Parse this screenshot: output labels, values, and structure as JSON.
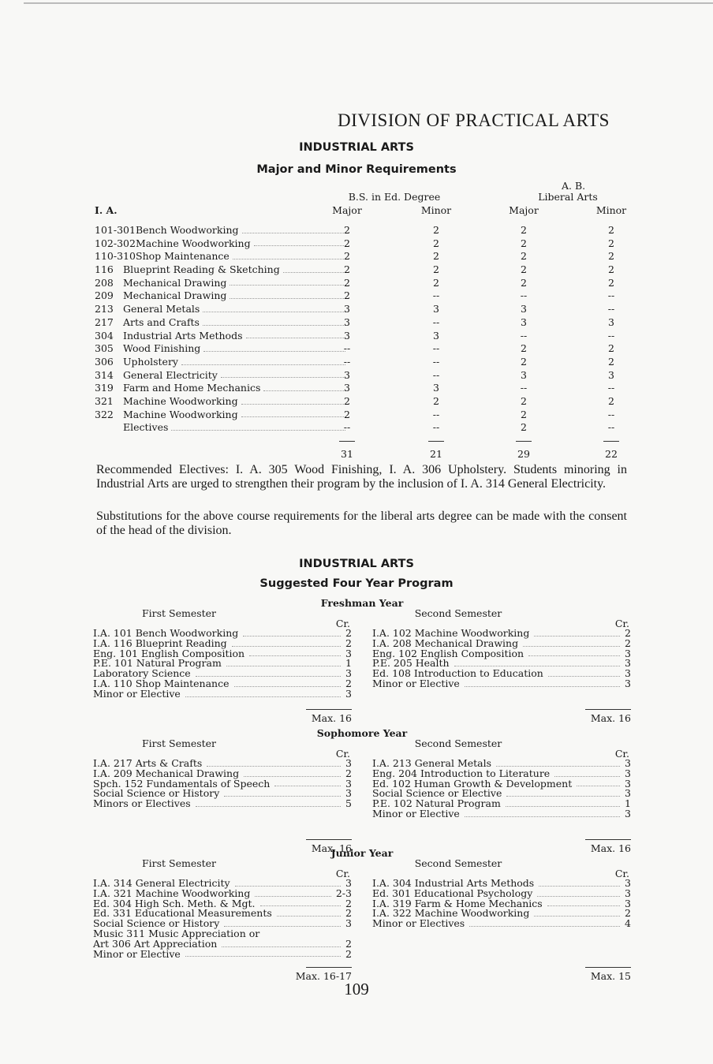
{
  "division_title": "DIVISION OF PRACTICAL ARTS",
  "section1": {
    "heading": "INDUSTRIAL ARTS",
    "subheading": "Major and Minor Requirements"
  },
  "table": {
    "group_bs": "B.S. in Ed. Degree",
    "group_ab_1": "A. B.",
    "group_ab_2": "Liberal Arts",
    "row_header": "I. A.",
    "col_headers": [
      "Major",
      "Minor",
      "Major",
      "Minor"
    ],
    "rows": [
      {
        "code": "101-301",
        "name": "Bench Woodworking",
        "v": [
          "2",
          "2",
          "2",
          "2"
        ]
      },
      {
        "code": "102-302",
        "name": "Machine Woodworking",
        "v": [
          "2",
          "2",
          "2",
          "2"
        ]
      },
      {
        "code": "110-310",
        "name": "Shop Maintenance",
        "v": [
          "2",
          "2",
          "2",
          "2"
        ]
      },
      {
        "code": "116",
        "name": "Blueprint Reading & Sketching",
        "v": [
          "2",
          "2",
          "2",
          "2"
        ]
      },
      {
        "code": "208",
        "name": "Mechanical Drawing",
        "v": [
          "2",
          "2",
          "2",
          "2"
        ]
      },
      {
        "code": "209",
        "name": "Mechanical Drawing",
        "v": [
          "2",
          "--",
          "--",
          "--"
        ]
      },
      {
        "code": "213",
        "name": "General Metals",
        "v": [
          "3",
          "3",
          "3",
          "--"
        ]
      },
      {
        "code": "217",
        "name": "Arts and Crafts",
        "v": [
          "3",
          "--",
          "3",
          "3"
        ]
      },
      {
        "code": "304",
        "name": "Industrial Arts Methods",
        "v": [
          "3",
          "3",
          "--",
          "--"
        ]
      },
      {
        "code": "305",
        "name": "Wood Finishing",
        "v": [
          "--",
          "--",
          "2",
          "2"
        ]
      },
      {
        "code": "306",
        "name": "Upholstery",
        "v": [
          "--",
          "--",
          "2",
          "2"
        ]
      },
      {
        "code": "314",
        "name": "General Electricity",
        "v": [
          "3",
          "--",
          "3",
          "3"
        ]
      },
      {
        "code": "319",
        "name": "Farm and Home Mechanics",
        "v": [
          "3",
          "3",
          "--",
          "--"
        ]
      },
      {
        "code": "321",
        "name": "Machine Woodworking",
        "v": [
          "2",
          "2",
          "2",
          "2"
        ]
      },
      {
        "code": "322",
        "name": "Machine Woodworking",
        "v": [
          "2",
          "--",
          "2",
          "--"
        ]
      },
      {
        "code": "",
        "name": "Electives",
        "v": [
          "--",
          "--",
          "2",
          "--"
        ]
      }
    ],
    "totals": [
      "31",
      "21",
      "29",
      "22"
    ]
  },
  "paragraphs": [
    "Recommended Electives: I. A. 305 Wood Finishing, I. A. 306 Upholstery. Students minoring in Industrial Arts are urged to strengthen their program by the inclusion of I. A. 314 General Electricity.",
    "Substitutions for the above course requirements for the liberal arts degree can be made with the consent of the head of the division."
  ],
  "section2": {
    "heading": "INDUSTRIAL ARTS",
    "subheading": "Suggested Four Year Program"
  },
  "program": {
    "first_label": "First Semester",
    "second_label": "Second Semester",
    "cr_label": "Cr.",
    "years": [
      {
        "title": "Freshman Year",
        "first": {
          "courses": [
            {
              "name": "I.A. 101 Bench Woodworking",
              "cr": "2"
            },
            {
              "name": "I.A. 116 Blueprint Reading",
              "cr": "2"
            },
            {
              "name": "Eng. 101 English Composition",
              "cr": "3"
            },
            {
              "name": "P.E. 101 Natural Program",
              "cr": "1"
            },
            {
              "name": "Laboratory Science",
              "cr": "3"
            },
            {
              "name": "I.A. 110 Shop Maintenance",
              "cr": "2"
            },
            {
              "name": "Minor or Elective",
              "cr": "3"
            }
          ],
          "max": "Max. 16"
        },
        "second": {
          "courses": [
            {
              "name": "I.A. 102 Machine Woodworking",
              "cr": "2"
            },
            {
              "name": "I.A. 208 Mechanical Drawing",
              "cr": "2"
            },
            {
              "name": "Eng. 102 English Composition",
              "cr": "3"
            },
            {
              "name": "P.E. 205 Health",
              "cr": "3"
            },
            {
              "name": "Ed. 108 Introduction to Education",
              "cr": "3"
            },
            {
              "name": "Minor or Elective",
              "cr": "3"
            }
          ],
          "max": "Max. 16"
        }
      },
      {
        "title": "Sophomore Year",
        "first": {
          "courses": [
            {
              "name": "I.A. 217 Arts & Crafts",
              "cr": "3"
            },
            {
              "name": "I.A. 209 Mechanical Drawing",
              "cr": "2"
            },
            {
              "name": "Spch. 152 Fundamentals of Speech",
              "cr": "3"
            },
            {
              "name": "Social Science or History",
              "cr": "3"
            },
            {
              "name": "Minors or Electives",
              "cr": "5"
            }
          ],
          "max": "Max. 16"
        },
        "second": {
          "courses": [
            {
              "name": "I.A. 213 General Metals",
              "cr": "3"
            },
            {
              "name": "Eng. 204 Introduction to Literature",
              "cr": "3"
            },
            {
              "name": "Ed. 102 Human Growth & Development",
              "cr": "3"
            },
            {
              "name": "Social Science or Elective",
              "cr": "3"
            },
            {
              "name": "P.E. 102 Natural Program",
              "cr": "1"
            },
            {
              "name": "Minor or Elective",
              "cr": "3"
            }
          ],
          "max": "Max. 16"
        }
      },
      {
        "title": "Junior Year",
        "first": {
          "courses": [
            {
              "name": "I.A. 314 General Electricity",
              "cr": "3"
            },
            {
              "name": "I.A. 321 Machine Woodworking",
              "cr": "2-3"
            },
            {
              "name": "Ed. 304 High Sch. Meth. & Mgt.",
              "cr": "2"
            },
            {
              "name": "Ed. 331 Educational Measurements",
              "cr": "2"
            },
            {
              "name": "Social Science or History",
              "cr": "3"
            },
            {
              "name": "Music 311 Music Appreciation or",
              "cr": ""
            },
            {
              "name": "Art 306 Art Appreciation",
              "cr": "2"
            },
            {
              "name": "Minor or Elective",
              "cr": "2"
            }
          ],
          "max": "Max. 16-17"
        },
        "second": {
          "courses": [
            {
              "name": "I.A. 304 Industrial Arts Methods",
              "cr": "3"
            },
            {
              "name": "Ed. 301 Educational Psychology",
              "cr": "3"
            },
            {
              "name": "I.A. 319 Farm & Home Mechanics",
              "cr": "3"
            },
            {
              "name": "I.A. 322 Machine Woodworking",
              "cr": "2"
            },
            {
              "name": "Minor or Electives",
              "cr": "4"
            }
          ],
          "max": "Max. 15"
        }
      }
    ]
  },
  "page_number": "109"
}
